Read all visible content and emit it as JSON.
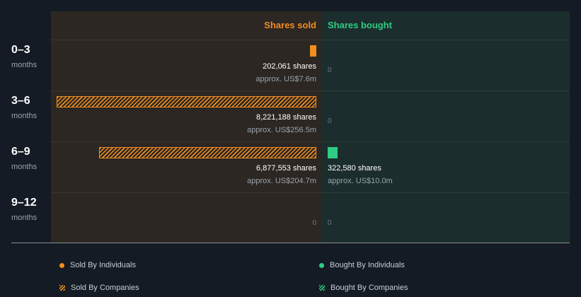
{
  "chart_data": {
    "type": "bar",
    "orientation": "horizontal-diverging",
    "headers": {
      "sold": "Shares sold",
      "bought": "Shares bought"
    },
    "categories": [
      {
        "label": "0–3",
        "unit": "months"
      },
      {
        "label": "3–6",
        "unit": "months"
      },
      {
        "label": "6–9",
        "unit": "months"
      },
      {
        "label": "9–12",
        "unit": "months"
      }
    ],
    "series": [
      {
        "name": "Sold By Individuals",
        "side": "sold",
        "pattern": "solid",
        "color": "#f28d1f",
        "values": [
          202061,
          0,
          0,
          0
        ]
      },
      {
        "name": "Sold By Companies",
        "side": "sold",
        "pattern": "hatched",
        "color": "#f28d1f",
        "values": [
          0,
          8221188,
          6877553,
          0
        ]
      },
      {
        "name": "Bought By Individuals",
        "side": "bought",
        "pattern": "solid",
        "color": "#2fcc84",
        "values": [
          0,
          0,
          322580,
          0
        ]
      },
      {
        "name": "Bought By Companies",
        "side": "bought",
        "pattern": "hatched",
        "color": "#2fcc84",
        "values": [
          0,
          0,
          0,
          0
        ]
      }
    ],
    "totals": {
      "sold": [
        {
          "shares": "202,061 shares",
          "approx": "approx. US$7.6m"
        },
        {
          "shares": "8,221,188 shares",
          "approx": "approx. US$256.5m"
        },
        {
          "shares": "6,877,553 shares",
          "approx": "approx. US$204.7m"
        },
        {
          "shares": "",
          "approx": "",
          "zero": "0"
        }
      ],
      "bought": [
        {
          "shares": "",
          "approx": "",
          "zero": "0"
        },
        {
          "shares": "",
          "approx": "",
          "zero": "0"
        },
        {
          "shares": "322,580 shares",
          "approx": "approx. US$10.0m"
        },
        {
          "shares": "",
          "approx": "",
          "zero": "0"
        }
      ]
    },
    "max_value": 8221188,
    "legend": [
      {
        "name": "Sold By Individuals",
        "marker": "dot",
        "color": "#f28d1f"
      },
      {
        "name": "Bought By Individuals",
        "marker": "dot",
        "color": "#2fcc84"
      },
      {
        "name": "Sold By Companies",
        "marker": "hatch",
        "color": "#f28d1f"
      },
      {
        "name": "Bought By Companies",
        "marker": "hatch",
        "color": "#2fcc84"
      }
    ]
  }
}
